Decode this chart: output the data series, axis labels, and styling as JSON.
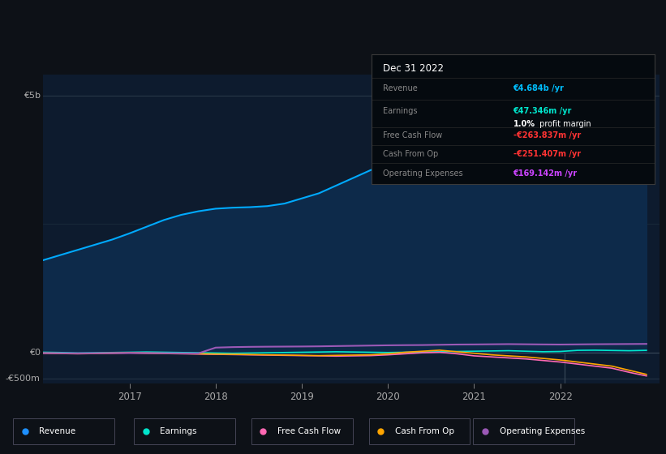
{
  "background_color": "#0d1117",
  "plot_bg_color": "#0d1b2e",
  "title_date": "Dec 31 2022",
  "info_box": {
    "Revenue_label": "Revenue",
    "Revenue_value": "€4.684b /yr",
    "Revenue_color": "#00bfff",
    "Earnings_label": "Earnings",
    "Earnings_value": "€47.346m /yr",
    "Earnings_color": "#00e5cc",
    "Profit_margin": "1.0%",
    "Profit_margin_text": " profit margin",
    "FreeCashFlow_label": "Free Cash Flow",
    "FreeCashFlow_value": "-€263.837m /yr",
    "FreeCashFlow_color": "#ff3333",
    "CashFromOp_label": "Cash From Op",
    "CashFromOp_value": "-€251.407m /yr",
    "CashFromOp_color": "#ff3333",
    "OpEx_label": "Operating Expenses",
    "OpEx_value": "€169.142m /yr",
    "OpEx_color": "#cc44ff"
  },
  "ylabel_5b": "€5b",
  "ylabel_0": "€0",
  "ylabel_neg500m": "-€500m",
  "legend": [
    {
      "label": "Revenue",
      "color": "#1e90ff"
    },
    {
      "label": "Earnings",
      "color": "#00e5cc"
    },
    {
      "label": "Free Cash Flow",
      "color": "#ff69b4"
    },
    {
      "label": "Cash From Op",
      "color": "#ffa500"
    },
    {
      "label": "Operating Expenses",
      "color": "#9b59b6"
    }
  ],
  "series": {
    "x": [
      2016.0,
      2016.2,
      2016.4,
      2016.6,
      2016.8,
      2017.0,
      2017.2,
      2017.4,
      2017.6,
      2017.8,
      2018.0,
      2018.2,
      2018.4,
      2018.6,
      2018.8,
      2019.0,
      2019.2,
      2019.4,
      2019.6,
      2019.8,
      2020.0,
      2020.2,
      2020.4,
      2020.6,
      2020.8,
      2021.0,
      2021.2,
      2021.4,
      2021.6,
      2021.8,
      2022.0,
      2022.2,
      2022.4,
      2022.6,
      2022.8,
      2023.0
    ],
    "revenue": [
      1800000000,
      1900000000,
      2000000000,
      2100000000,
      2200000000,
      2320000000,
      2450000000,
      2580000000,
      2680000000,
      2750000000,
      2800000000,
      2820000000,
      2830000000,
      2850000000,
      2900000000,
      3000000000,
      3100000000,
      3250000000,
      3400000000,
      3550000000,
      3650000000,
      3720000000,
      3850000000,
      4050000000,
      4200000000,
      4450000000,
      4680000000,
      4720000000,
      4680000000,
      4620000000,
      4500000000,
      4520000000,
      4540000000,
      4570000000,
      4590000000,
      4620000000
    ],
    "earnings": [
      10000000,
      5000000,
      -5000000,
      0,
      5000000,
      10000000,
      15000000,
      10000000,
      5000000,
      0,
      -5000000,
      -10000000,
      -5000000,
      0,
      5000000,
      10000000,
      15000000,
      20000000,
      15000000,
      10000000,
      5000000,
      10000000,
      15000000,
      20000000,
      25000000,
      30000000,
      35000000,
      40000000,
      30000000,
      20000000,
      25000000,
      47000000,
      50000000,
      45000000,
      40000000,
      47000000
    ],
    "free_cash_flow": [
      -10000000,
      -15000000,
      -20000000,
      -15000000,
      -10000000,
      -5000000,
      -10000000,
      -15000000,
      -20000000,
      -25000000,
      -30000000,
      -35000000,
      -40000000,
      -45000000,
      -50000000,
      -55000000,
      -60000000,
      -65000000,
      -60000000,
      -55000000,
      -40000000,
      -20000000,
      0,
      10000000,
      -20000000,
      -60000000,
      -80000000,
      -100000000,
      -120000000,
      -150000000,
      -180000000,
      -220000000,
      -260000000,
      -300000000,
      -380000000,
      -450000000
    ],
    "cash_from_op": [
      -5000000,
      -10000000,
      -15000000,
      -10000000,
      -5000000,
      0,
      -5000000,
      -10000000,
      -15000000,
      -20000000,
      -25000000,
      -30000000,
      -35000000,
      -40000000,
      -45000000,
      -50000000,
      -55000000,
      -50000000,
      -45000000,
      -40000000,
      -20000000,
      10000000,
      30000000,
      50000000,
      20000000,
      -10000000,
      -40000000,
      -60000000,
      -80000000,
      -110000000,
      -140000000,
      -180000000,
      -220000000,
      -260000000,
      -340000000,
      -420000000
    ],
    "operating_expenses": [
      -5000000,
      -8000000,
      -10000000,
      -8000000,
      -5000000,
      -3000000,
      -5000000,
      -8000000,
      -10000000,
      -12000000,
      100000000,
      110000000,
      115000000,
      118000000,
      120000000,
      122000000,
      125000000,
      130000000,
      135000000,
      140000000,
      145000000,
      148000000,
      150000000,
      155000000,
      160000000,
      162000000,
      165000000,
      168000000,
      165000000,
      162000000,
      160000000,
      163000000,
      166000000,
      168000000,
      170000000,
      172000000
    ]
  }
}
